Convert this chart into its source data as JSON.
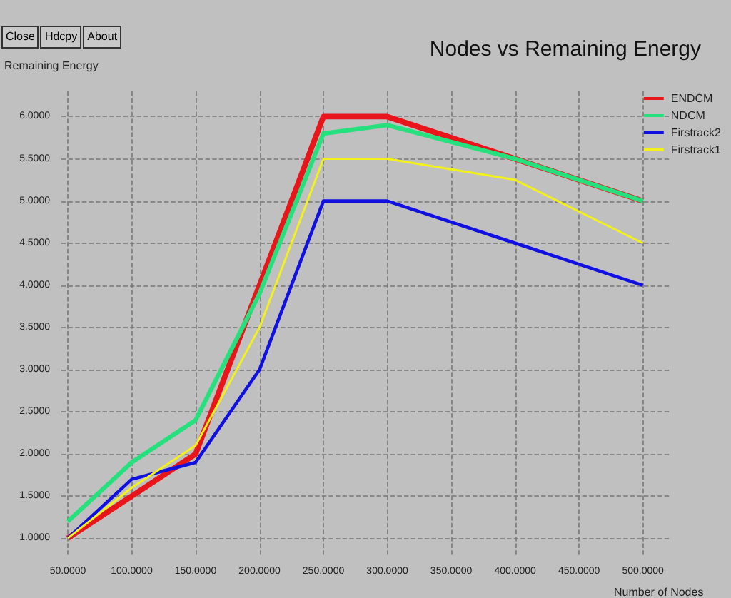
{
  "chart_data": {
    "type": "line",
    "title": "Nodes vs Remaining Energy",
    "xlabel": "Number of Nodes",
    "ylabel": "Remaining Energy",
    "annotations": [
      "Close",
      "Hdcpy",
      "About"
    ],
    "x": [
      50,
      100,
      150,
      200,
      250,
      300,
      400,
      500
    ],
    "series": [
      {
        "name": "ENDCM",
        "color": "#e8161b",
        "values": [
          1.0,
          1.5,
          2.0,
          4.0,
          6.0,
          6.0,
          5.5,
          5.0
        ]
      },
      {
        "name": "NDCM",
        "color": "#25e07c",
        "values": [
          1.2,
          1.9,
          2.4,
          3.9,
          5.8,
          5.9,
          5.5,
          5.0
        ]
      },
      {
        "name": "Firstrack2",
        "color": "#1010e0",
        "values": [
          1.0,
          1.7,
          1.9,
          3.0,
          5.0,
          5.0,
          4.5,
          4.0
        ]
      },
      {
        "name": "Firstrack1",
        "color": "#f2f21a",
        "values": [
          1.0,
          1.6,
          2.1,
          3.5,
          5.5,
          5.5,
          5.25,
          4.5
        ]
      }
    ],
    "xlim": [
      45,
      522
    ],
    "ylim": [
      0.8,
      6.3
    ],
    "xticks": [
      {
        "value": 50,
        "label": "50.0000"
      },
      {
        "value": 100,
        "label": "100.0000"
      },
      {
        "value": 150,
        "label": "150.0000"
      },
      {
        "value": 200,
        "label": "200.0000"
      },
      {
        "value": 250,
        "label": "250.0000"
      },
      {
        "value": 300,
        "label": "300.0000"
      },
      {
        "value": 350,
        "label": "350.0000"
      },
      {
        "value": 400,
        "label": "400.0000"
      },
      {
        "value": 450,
        "label": "450.0000"
      },
      {
        "value": 500,
        "label": "500.0000"
      }
    ],
    "yticks": [
      {
        "value": 1.0,
        "label": "1.0000"
      },
      {
        "value": 1.5,
        "label": "1.5000"
      },
      {
        "value": 2.0,
        "label": "2.0000"
      },
      {
        "value": 2.5,
        "label": "2.5000"
      },
      {
        "value": 3.0,
        "label": "3.0000"
      },
      {
        "value": 3.5,
        "label": "3.5000"
      },
      {
        "value": 4.0,
        "label": "4.0000"
      },
      {
        "value": 4.5,
        "label": "4.5000"
      },
      {
        "value": 5.0,
        "label": "5.0000"
      },
      {
        "value": 5.5,
        "label": "5.5000"
      },
      {
        "value": 6.0,
        "label": "6.0000"
      }
    ],
    "grid": true,
    "legend": "top right",
    "marker": "none",
    "line_style": "solid"
  }
}
